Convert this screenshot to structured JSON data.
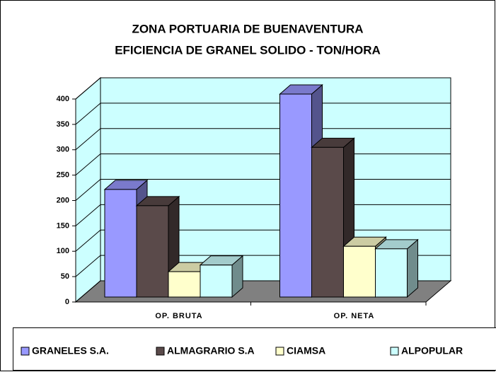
{
  "chart_data": {
    "type": "bar3d",
    "title": "ZONA PORTUARIA DE BUENAVENTURA",
    "subtitle": "EFICIENCIA DE GRANEL SOLIDO - TON/HORA",
    "categories": [
      "OP. BRUTA",
      "OP. NETA"
    ],
    "series": [
      {
        "name": "GRANELES S.A.",
        "color": "#9999ff",
        "values": [
          212,
          400
        ]
      },
      {
        "name": "ALMAGRARIO S.A",
        "color": "#5a4a4a",
        "values": [
          180,
          295
        ]
      },
      {
        "name": "CIAMSA",
        "color": "#ffffcc",
        "values": [
          50,
          100
        ]
      },
      {
        "name": "ALPOPULAR",
        "color": "#ccffff",
        "values": [
          63,
          95
        ]
      }
    ],
    "ylim": [
      0,
      400
    ],
    "yticks": [
      0,
      50,
      100,
      150,
      200,
      250,
      300,
      350,
      400
    ],
    "grid": true,
    "legend": "bottom",
    "wall_color": "#ccffff",
    "floor_color": "#808080"
  }
}
